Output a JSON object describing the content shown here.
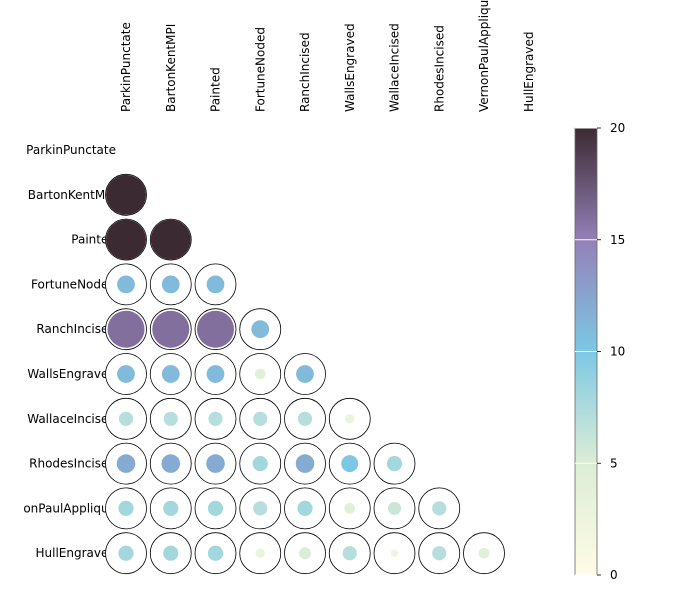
{
  "chart_data": {
    "type": "heatmap",
    "subtype": "lower-triangular correlogram with circles",
    "variables": [
      "ParkinPunctate",
      "BartonKentMPI",
      "Painted",
      "FortuneNoded",
      "RanchIncised",
      "WallsEngraved",
      "WallaceIncised",
      "RhodesIncised",
      "VernonPaulApplique",
      "HullEngraved"
    ],
    "row_labels": [
      "ParkinPunctate",
      "BartonKentMPI",
      "Painted",
      "FortuneNoded",
      "RanchIncised",
      "WallsEngraved",
      "WallaceIncised",
      "RhodesIncised",
      "onPaulApplique",
      "HullEngraved"
    ],
    "values": [
      [
        null,
        null,
        null,
        null,
        null,
        null,
        null,
        null,
        null,
        null
      ],
      [
        20,
        null,
        null,
        null,
        null,
        null,
        null,
        null,
        null,
        null
      ],
      [
        20,
        20,
        null,
        null,
        null,
        null,
        null,
        null,
        null,
        null
      ],
      [
        11,
        11,
        11,
        null,
        null,
        null,
        null,
        null,
        null,
        null
      ],
      [
        16,
        16,
        16,
        11,
        null,
        null,
        null,
        null,
        null,
        null
      ],
      [
        11,
        11,
        11,
        4,
        11,
        null,
        null,
        null,
        null,
        null
      ],
      [
        7,
        7,
        7,
        7,
        7,
        3,
        null,
        null,
        null,
        null
      ],
      [
        12,
        12,
        12,
        8,
        12,
        10,
        8,
        null,
        null,
        null
      ],
      [
        8,
        8,
        8,
        7,
        8,
        4,
        6,
        7,
        null,
        null
      ],
      [
        8,
        8,
        8,
        3,
        5,
        7,
        2,
        7,
        4,
        null
      ]
    ],
    "colorbar": {
      "min": 0,
      "max": 20,
      "ticks": [
        0,
        5,
        10,
        15,
        20
      ],
      "colors": [
        "#fffbe6",
        "#dcedd6",
        "#7cc8e4",
        "#9480b8",
        "#3b2a31"
      ]
    },
    "legend_position": "right",
    "grid": false
  }
}
